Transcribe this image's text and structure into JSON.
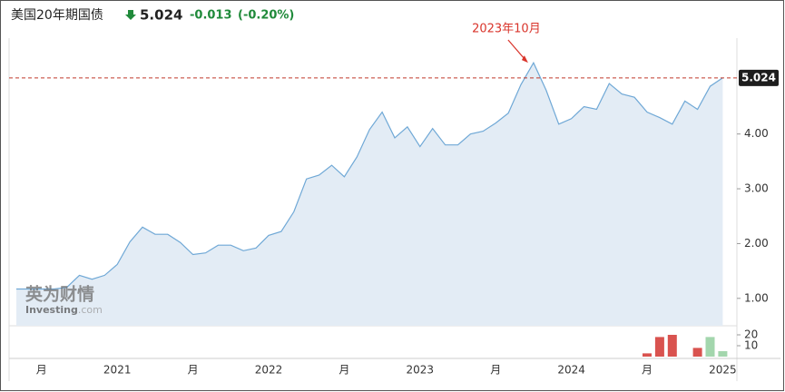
{
  "header": {
    "title": "美国20年期国债",
    "change": "-0.013",
    "change_pct": "(-0.20%)"
  },
  "watermark": {
    "brand": "英为财情",
    "site": "Investing",
    "domain": ".com"
  },
  "chart_data": [
    {
      "type": "line",
      "color": "#6fa8d6",
      "fill_color": "#e3ecf5",
      "ref_color": "#c0392b",
      "annotation": "2023年10月",
      "categories": [
        null,
        null,
        "月",
        null,
        null,
        null,
        null,
        null,
        "2021",
        null,
        null,
        null,
        null,
        null,
        "月",
        null,
        null,
        null,
        null,
        null,
        "2022",
        null,
        null,
        null,
        null,
        null,
        "月",
        null,
        null,
        null,
        null,
        null,
        "2023",
        null,
        null,
        null,
        null,
        null,
        "月",
        null,
        null,
        null,
        null,
        null,
        "2024",
        null,
        null,
        null,
        null,
        null,
        "月",
        null,
        null,
        null,
        null,
        null,
        "2025"
      ],
      "values": [
        1.17,
        1.17,
        1.17,
        1.17,
        1.2,
        1.42,
        1.35,
        1.42,
        1.62,
        2.03,
        2.3,
        2.17,
        2.17,
        2.02,
        1.8,
        1.83,
        1.97,
        1.97,
        1.87,
        1.92,
        2.15,
        2.22,
        2.58,
        3.18,
        3.25,
        3.43,
        3.22,
        3.58,
        4.08,
        4.4,
        3.93,
        4.13,
        3.77,
        4.1,
        3.8,
        3.8,
        4.0,
        4.05,
        4.2,
        4.38,
        4.9,
        5.3,
        4.8,
        4.18,
        4.28,
        4.5,
        4.45,
        4.92,
        4.73,
        4.67,
        4.4,
        4.3,
        4.18,
        4.6,
        4.45,
        4.87,
        5.024
      ],
      "ylim": [
        0.5,
        5.75
      ],
      "yticks": [
        {
          "value": 1,
          "label": "1.00"
        },
        {
          "value": 2,
          "label": "2.00"
        },
        {
          "value": 3,
          "label": "3.00"
        },
        {
          "value": 4,
          "label": "4.00"
        }
      ]
    },
    {
      "type": "bar",
      "values": [
        null,
        null,
        null,
        null,
        null,
        null,
        null,
        null,
        null,
        null,
        null,
        null,
        null,
        null,
        null,
        null,
        null,
        null,
        null,
        null,
        null,
        null,
        null,
        null,
        null,
        null,
        null,
        null,
        null,
        null,
        null,
        null,
        null,
        null,
        null,
        null,
        null,
        null,
        null,
        null,
        null,
        null,
        null,
        null,
        null,
        null,
        null,
        null,
        null,
        null,
        3,
        18,
        20,
        null,
        8,
        18,
        5
      ],
      "colors": [
        null,
        null,
        null,
        null,
        null,
        null,
        null,
        null,
        null,
        null,
        null,
        null,
        null,
        null,
        null,
        null,
        null,
        null,
        null,
        null,
        null,
        null,
        null,
        null,
        null,
        null,
        null,
        null,
        null,
        null,
        null,
        null,
        null,
        null,
        null,
        null,
        null,
        null,
        null,
        null,
        null,
        null,
        null,
        null,
        null,
        null,
        null,
        null,
        null,
        null,
        "#d9534f",
        "#d9534f",
        "#d9534f",
        null,
        "#d9534f",
        "#a3d6ad",
        "#a3d6ad"
      ],
      "ylim": [
        0,
        27.5
      ],
      "yticks": [
        10,
        20
      ]
    }
  ]
}
